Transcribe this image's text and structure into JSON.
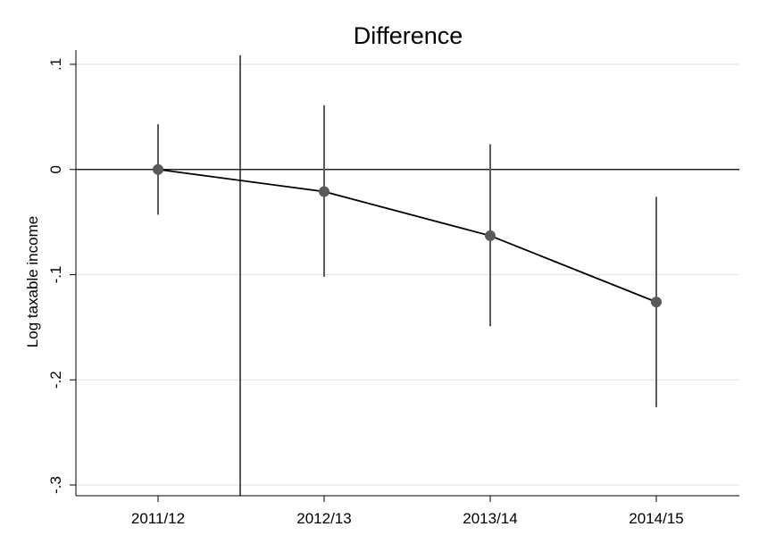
{
  "chart_data": {
    "type": "line",
    "title": "Difference",
    "xlabel": "",
    "ylabel": "Log taxable income",
    "categories": [
      "2011/12",
      "2012/13",
      "2013/14",
      "2014/15"
    ],
    "series": [
      {
        "values": [
          0.0,
          -0.021,
          -0.063,
          -0.126
        ],
        "ci_low": [
          -0.043,
          -0.102,
          -0.149,
          -0.226
        ],
        "ci_high": [
          0.043,
          0.061,
          0.024,
          -0.026
        ]
      }
    ],
    "ylim": [
      -0.3,
      0.1
    ],
    "yticks": [
      0.1,
      0,
      -0.1,
      -0.2,
      -0.3
    ],
    "ytick_labels": [
      ".1",
      "0",
      "-.1",
      "-.2",
      "-.3"
    ],
    "reference_line_y": 0,
    "reference_line_x_between": [
      "2011/12",
      "2012/13"
    ],
    "grid": true,
    "colors": {
      "marker": "#5a5a5a",
      "line": "#000000",
      "ci": "#5a5a5a",
      "grid": "#e6e6e6"
    }
  }
}
